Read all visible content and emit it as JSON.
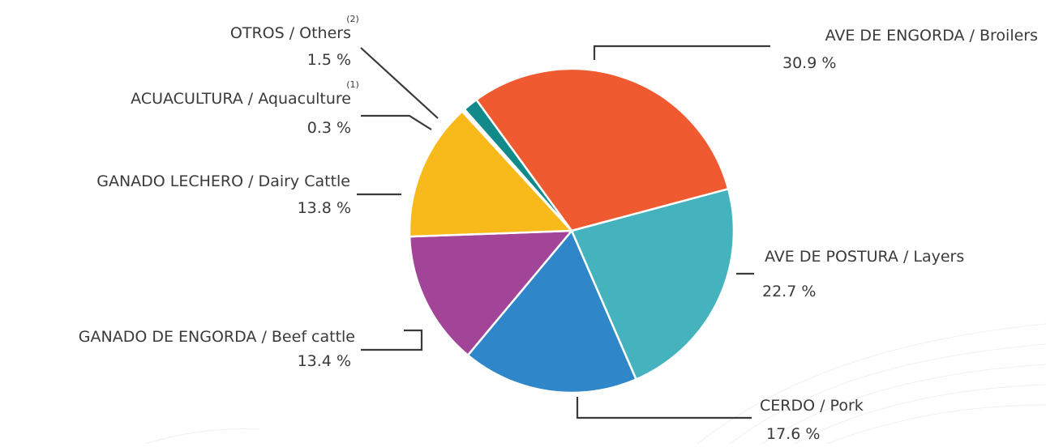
{
  "chart_data": {
    "type": "pie",
    "unit": "%",
    "slices": [
      {
        "key": "broilers",
        "label": "AVE DE ENGORDA / Broilers",
        "value": 30.9,
        "value_label": "30.9 %",
        "note": "",
        "color": "#F05A30"
      },
      {
        "key": "layers",
        "label": "AVE DE POSTURA / Layers",
        "value": 22.7,
        "value_label": "22.7 %",
        "note": "",
        "color": "#45B3BE"
      },
      {
        "key": "pork",
        "label": "CERDO / Pork",
        "value": 17.6,
        "value_label": "17.6 %",
        "note": "",
        "color": "#2F86C8"
      },
      {
        "key": "beef",
        "label": "GANADO DE ENGORDA / Beef cattle",
        "value": 13.4,
        "value_label": "13.4 %",
        "note": "",
        "color": "#A24497"
      },
      {
        "key": "dairy",
        "label": "GANADO LECHERO / Dairy Cattle",
        "value": 13.8,
        "value_label": "13.8 %",
        "note": "",
        "color": "#F8B91A"
      },
      {
        "key": "aquaculture",
        "label": "ACUACULTURA / Aquaculture",
        "value": 0.3,
        "value_label": "0.3 %",
        "note": "(1)",
        "color": "#FFFFFF"
      },
      {
        "key": "others",
        "label": "OTROS / Others",
        "value": 1.5,
        "value_label": "1.5 %",
        "note": "(2)",
        "color": "#138A8A"
      }
    ]
  }
}
